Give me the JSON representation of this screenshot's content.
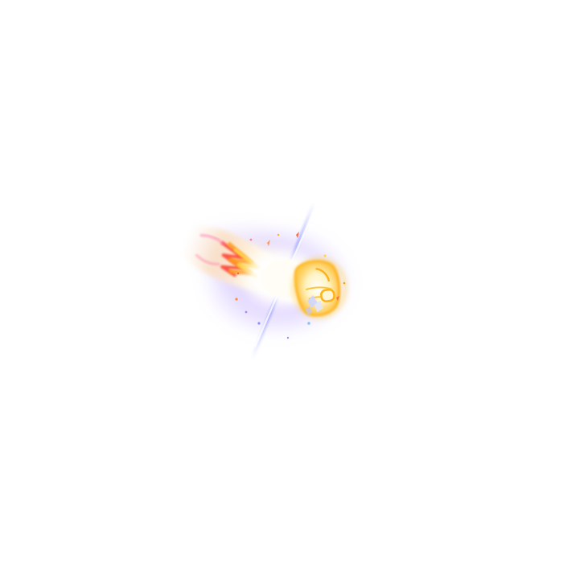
{
  "effect": {
    "icon": "flaming-fist-punch-icon",
    "palette": {
      "background": "#ffffff",
      "core": "#fffdf5",
      "glow_yellow": "#ffe27a",
      "flame_orange": "#ff9a1f",
      "flame_red": "#ff3b2f",
      "flame_pink": "#ff7fb0",
      "aura_violet": "#a98bff",
      "streak_blue": "#6f7dff",
      "fist_outline": "#ffb21a"
    }
  }
}
